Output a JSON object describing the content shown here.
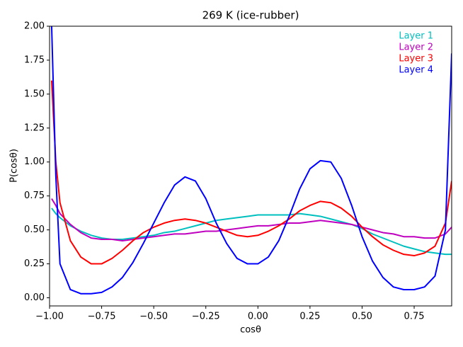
{
  "chart_data": {
    "type": "line",
    "title": "269 K (ice-rubber)",
    "x_label": "cosθ",
    "y_label": "P(cosθ)",
    "x": [
      -0.99,
      -0.97,
      -0.95,
      -0.9,
      -0.85,
      -0.8,
      -0.75,
      -0.7,
      -0.65,
      -0.6,
      -0.55,
      -0.5,
      -0.45,
      -0.4,
      -0.35,
      -0.3,
      -0.25,
      -0.2,
      -0.15,
      -0.1,
      -0.05,
      0,
      0.05,
      0.1,
      0.15,
      0.2,
      0.25,
      0.3,
      0.35,
      0.4,
      0.45,
      0.5,
      0.55,
      0.6,
      0.65,
      0.7,
      0.75,
      0.8,
      0.85,
      0.9,
      0.93
    ],
    "series": [
      {
        "name": "Layer 1",
        "color": "#00bfbf",
        "values": [
          0.66,
          0.62,
          0.59,
          0.53,
          0.49,
          0.46,
          0.44,
          0.43,
          0.43,
          0.44,
          0.45,
          0.46,
          0.48,
          0.49,
          0.51,
          0.53,
          0.55,
          0.57,
          0.58,
          0.59,
          0.6,
          0.61,
          0.61,
          0.61,
          0.61,
          0.62,
          0.61,
          0.6,
          0.58,
          0.56,
          0.54,
          0.51,
          0.47,
          0.44,
          0.41,
          0.38,
          0.36,
          0.34,
          0.33,
          0.32,
          0.32
        ]
      },
      {
        "name": "Layer 2",
        "color": "#bf00bf",
        "values": [
          0.73,
          0.68,
          0.62,
          0.54,
          0.48,
          0.44,
          0.43,
          0.43,
          0.42,
          0.43,
          0.44,
          0.45,
          0.46,
          0.47,
          0.47,
          0.48,
          0.49,
          0.49,
          0.5,
          0.51,
          0.52,
          0.53,
          0.53,
          0.54,
          0.55,
          0.55,
          0.56,
          0.57,
          0.56,
          0.55,
          0.54,
          0.52,
          0.5,
          0.48,
          0.47,
          0.45,
          0.45,
          0.44,
          0.44,
          0.47,
          0.52
        ]
      },
      {
        "name": "Layer 3",
        "color": "#ff0000",
        "values": [
          1.6,
          1.0,
          0.7,
          0.42,
          0.3,
          0.25,
          0.25,
          0.29,
          0.35,
          0.42,
          0.48,
          0.52,
          0.55,
          0.57,
          0.58,
          0.57,
          0.55,
          0.52,
          0.49,
          0.46,
          0.45,
          0.46,
          0.49,
          0.53,
          0.58,
          0.64,
          0.68,
          0.71,
          0.7,
          0.66,
          0.6,
          0.52,
          0.45,
          0.39,
          0.35,
          0.32,
          0.31,
          0.33,
          0.38,
          0.55,
          0.86
        ]
      },
      {
        "name": "Layer 4",
        "color": "#0000ff",
        "values": [
          2.0,
          0.9,
          0.25,
          0.06,
          0.03,
          0.03,
          0.04,
          0.08,
          0.15,
          0.26,
          0.4,
          0.55,
          0.7,
          0.83,
          0.89,
          0.86,
          0.73,
          0.55,
          0.4,
          0.29,
          0.25,
          0.25,
          0.3,
          0.42,
          0.6,
          0.8,
          0.95,
          1.01,
          1.0,
          0.88,
          0.68,
          0.45,
          0.27,
          0.15,
          0.08,
          0.06,
          0.06,
          0.08,
          0.16,
          0.5,
          1.8
        ]
      }
    ],
    "xlim": [
      -1.0,
      0.93
    ],
    "ylim": [
      -0.06,
      2.0
    ],
    "xticks": [
      {
        "value": -1.0,
        "label": "−1.00"
      },
      {
        "value": -0.75,
        "label": "−0.75"
      },
      {
        "value": -0.5,
        "label": "−0.50"
      },
      {
        "value": -0.25,
        "label": "−0.25"
      },
      {
        "value": 0,
        "label": "0.00"
      },
      {
        "value": 0.25,
        "label": "0.25"
      },
      {
        "value": 0.5,
        "label": "0.50"
      },
      {
        "value": 0.75,
        "label": "0.75"
      }
    ],
    "yticks": [
      {
        "value": 0,
        "label": "0.00"
      },
      {
        "value": 0.25,
        "label": "0.25"
      },
      {
        "value": 0.5,
        "label": "0.50"
      },
      {
        "value": 0.75,
        "label": "0.75"
      },
      {
        "value": 1.0,
        "label": "1.00"
      },
      {
        "value": 1.25,
        "label": "1.25"
      },
      {
        "value": 1.5,
        "label": "1.50"
      },
      {
        "value": 1.75,
        "label": "1.75"
      },
      {
        "value": 2.0,
        "label": "2.00"
      }
    ],
    "legend": "upper right",
    "grid": false
  }
}
